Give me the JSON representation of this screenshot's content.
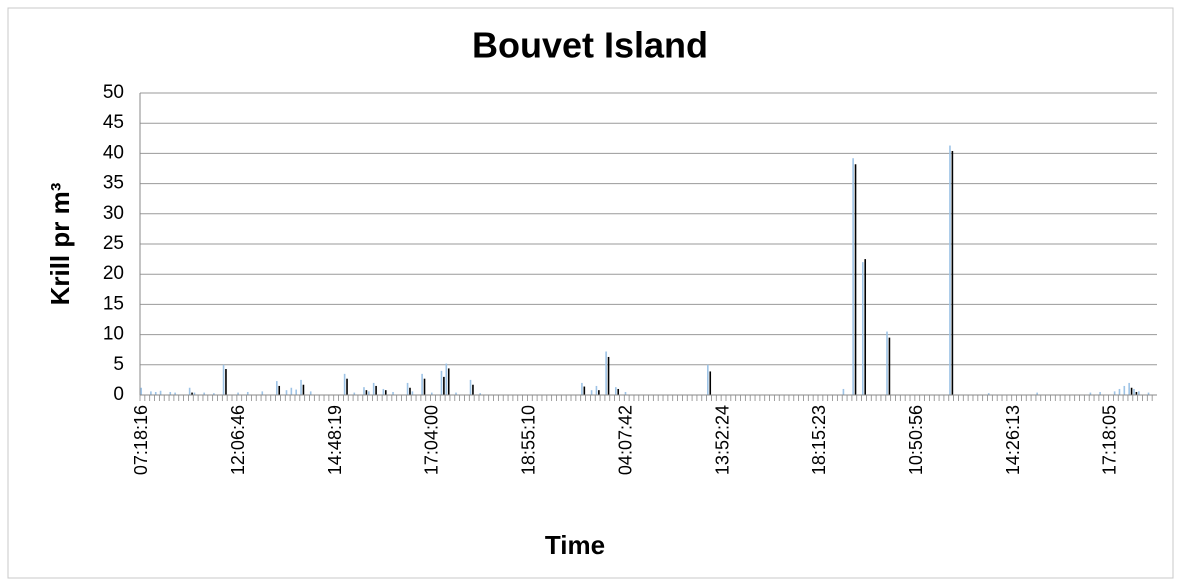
{
  "chart_data": {
    "type": "bar",
    "title": "Bouvet Island",
    "x_label": "Time",
    "y_label": "Krill pr m³",
    "ylim": [
      0,
      50
    ],
    "yticks": [
      0,
      5,
      10,
      15,
      20,
      25,
      30,
      35,
      40,
      45,
      50
    ],
    "grid": true,
    "categories": [
      "07:18:16",
      null,
      null,
      null,
      null,
      null,
      null,
      null,
      null,
      null,
      null,
      null,
      null,
      null,
      null,
      null,
      null,
      null,
      null,
      null,
      "12:06:46",
      null,
      null,
      null,
      null,
      null,
      null,
      null,
      null,
      null,
      null,
      null,
      null,
      null,
      null,
      null,
      null,
      null,
      null,
      null,
      "14:48:19",
      null,
      null,
      null,
      null,
      null,
      null,
      null,
      null,
      null,
      null,
      null,
      null,
      null,
      null,
      null,
      null,
      null,
      null,
      null,
      "17:04:00",
      null,
      null,
      null,
      null,
      null,
      null,
      null,
      null,
      null,
      null,
      null,
      null,
      null,
      null,
      null,
      null,
      null,
      null,
      null,
      "18:55:10",
      null,
      null,
      null,
      null,
      null,
      null,
      null,
      null,
      null,
      null,
      null,
      null,
      null,
      null,
      null,
      null,
      null,
      null,
      null,
      "04:07:42",
      null,
      null,
      null,
      null,
      null,
      null,
      null,
      null,
      null,
      null,
      null,
      null,
      null,
      null,
      null,
      null,
      null,
      null,
      null,
      "13:52:24",
      null,
      null,
      null,
      null,
      null,
      null,
      null,
      null,
      null,
      null,
      null,
      null,
      null,
      null,
      null,
      null,
      null,
      null,
      null,
      "18:15:23",
      null,
      null,
      null,
      null,
      null,
      null,
      null,
      null,
      null,
      null,
      null,
      null,
      null,
      null,
      null,
      null,
      null,
      null,
      null,
      "10:50:56",
      null,
      null,
      null,
      null,
      null,
      null,
      null,
      null,
      null,
      null,
      null,
      null,
      null,
      null,
      null,
      null,
      null,
      null,
      null,
      "14:26:13",
      null,
      null,
      null,
      null,
      null,
      null,
      null,
      null,
      null,
      null,
      null,
      null,
      null,
      null,
      null,
      null,
      null,
      null,
      null,
      "17:18:05",
      null,
      null,
      null,
      null,
      null,
      null,
      null,
      null,
      null
    ],
    "series": [
      {
        "color": "#9dc3e6",
        "values": [
          1.2,
          0,
          0.6,
          0.5,
          0.7,
          0,
          0.5,
          0.4,
          0,
          0,
          1.2,
          0.4,
          0,
          0.4,
          0,
          0.3,
          0,
          5,
          0,
          0,
          0.4,
          0,
          0.5,
          0,
          0,
          0.6,
          0,
          0,
          2.3,
          0,
          0.8,
          1.2,
          0.9,
          2.5,
          0,
          0.6,
          0,
          0,
          0,
          0,
          0,
          0,
          3.5,
          0,
          0.4,
          0,
          1.3,
          0.6,
          2,
          0,
          1,
          0,
          0.5,
          0,
          0,
          2,
          0.6,
          0,
          3.5,
          0,
          0.4,
          0,
          4,
          5.2,
          0,
          0.4,
          0,
          0,
          2.5,
          0,
          0.3,
          0,
          0,
          0,
          0,
          0,
          0,
          0,
          0,
          0,
          0,
          0,
          0,
          0,
          0,
          0,
          0,
          0,
          0,
          0,
          0,
          2,
          0,
          0.8,
          1.5,
          0,
          7.2,
          0,
          1.3,
          0,
          0.5,
          0,
          0,
          0,
          0,
          0,
          0,
          0,
          0,
          0,
          0,
          0,
          0,
          0,
          0,
          0,
          0,
          5,
          0,
          0,
          0,
          0,
          0,
          0,
          0,
          0,
          0,
          0,
          0,
          0,
          0,
          0,
          0,
          0,
          0,
          0,
          0,
          0,
          0,
          0,
          0,
          0,
          0,
          0,
          0,
          1,
          0,
          39.2,
          0,
          22,
          0,
          0,
          0,
          0,
          10.5,
          0,
          0,
          0,
          0,
          0,
          0,
          0,
          0,
          0,
          0,
          0,
          0,
          41.3,
          0,
          0,
          0,
          0,
          0,
          0,
          0,
          0.3,
          0,
          0,
          0,
          0,
          0,
          0,
          0,
          0,
          0,
          0.4,
          0,
          0,
          0,
          0,
          0,
          0,
          0,
          0,
          0,
          0,
          0.4,
          0,
          0.5,
          0,
          0,
          0.6,
          1,
          1.5,
          2,
          1,
          0.6,
          0,
          0.4,
          0
        ]
      },
      {
        "color": "#000000",
        "values": [
          0,
          0,
          0,
          0,
          0,
          0,
          0,
          0,
          0,
          0,
          0.4,
          0,
          0,
          0,
          0,
          0,
          0,
          4.3,
          0,
          0,
          0,
          0,
          0,
          0,
          0,
          0,
          0,
          0,
          1.5,
          0,
          0,
          0,
          0,
          1.7,
          0,
          0,
          0,
          0,
          0,
          0,
          0,
          0,
          2.7,
          0,
          0,
          0,
          0.8,
          0,
          1.5,
          0,
          0.8,
          0,
          0,
          0,
          0,
          1.2,
          0,
          0,
          2.7,
          0,
          0,
          0,
          3,
          4.4,
          0,
          0,
          0,
          0,
          1.7,
          0,
          0,
          0,
          0,
          0,
          0,
          0,
          0,
          0,
          0,
          0,
          0,
          0,
          0,
          0,
          0,
          0,
          0,
          0,
          0,
          0,
          0,
          1.4,
          0,
          0,
          0.8,
          0,
          6.3,
          0,
          1,
          0,
          0,
          0,
          0,
          0,
          0,
          0,
          0,
          0,
          0,
          0,
          0,
          0,
          0,
          0,
          0,
          0,
          0,
          3.9,
          0,
          0,
          0,
          0,
          0,
          0,
          0,
          0,
          0,
          0,
          0,
          0,
          0,
          0,
          0,
          0,
          0,
          0,
          0,
          0,
          0,
          0,
          0,
          0,
          0,
          0,
          0,
          0,
          0,
          38.2,
          0,
          22.5,
          0,
          0,
          0,
          0,
          9.5,
          0,
          0,
          0,
          0,
          0,
          0,
          0,
          0,
          0,
          0,
          0,
          0,
          40.4,
          0,
          0,
          0,
          0,
          0,
          0,
          0,
          0,
          0,
          0,
          0,
          0,
          0,
          0,
          0,
          0,
          0,
          0,
          0,
          0,
          0,
          0,
          0,
          0,
          0,
          0,
          0,
          0,
          0,
          0,
          0,
          0,
          0,
          0,
          0,
          0,
          1.2,
          0.5,
          0,
          0,
          0,
          0
        ]
      }
    ]
  }
}
